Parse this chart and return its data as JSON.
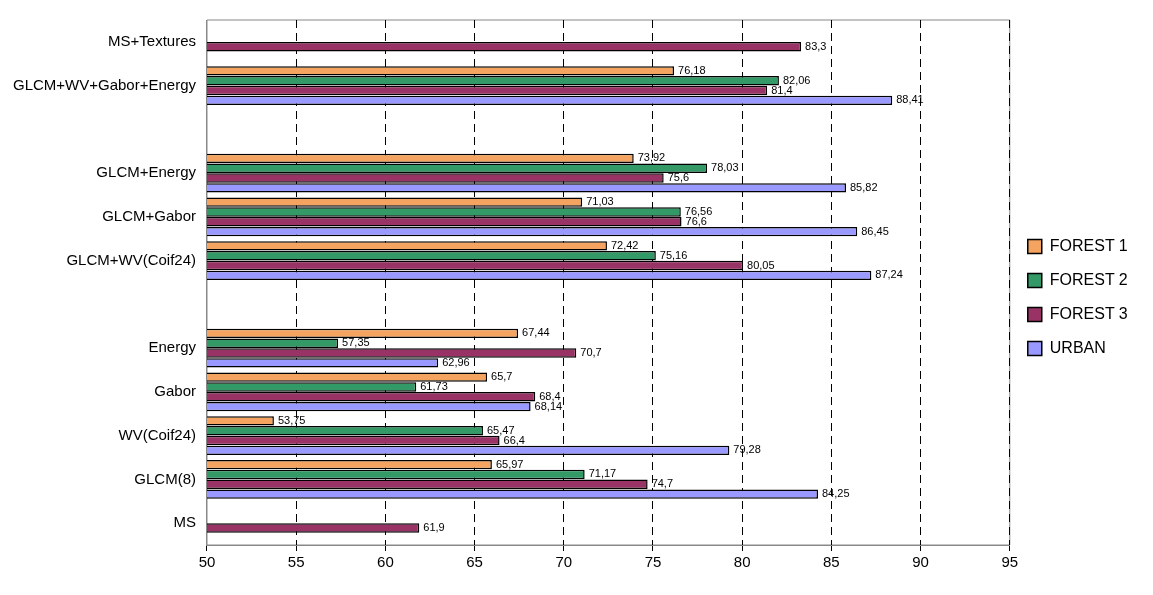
{
  "chart_data": {
    "type": "bar",
    "orientation": "horizontal",
    "categories": [
      "MS+Textures",
      "GLCM+WV+Gabor+Energy",
      null,
      "GLCM+Energy",
      "GLCM+Gabor",
      "GLCM+WV(Coif24)",
      null,
      "Energy",
      "Gabor",
      "WV(Coif24)",
      "GLCM(8)",
      "MS"
    ],
    "series": [
      {
        "name": "FOREST 1",
        "color": "#f4a460",
        "values": [
          null,
          76.18,
          null,
          73.92,
          71.03,
          72.42,
          null,
          67.44,
          65.7,
          53.75,
          65.97,
          null
        ],
        "value_labels": [
          null,
          "76,18",
          null,
          "73,92",
          "71,03",
          "72,42",
          null,
          "67,44",
          "65,7",
          "53,75",
          "65,97",
          null
        ]
      },
      {
        "name": "FOREST 2",
        "color": "#339966",
        "values": [
          null,
          82.06,
          null,
          78.03,
          76.56,
          75.16,
          null,
          57.35,
          61.73,
          65.47,
          71.17,
          null
        ],
        "value_labels": [
          null,
          "82,06",
          null,
          "78,03",
          "76,56",
          "75,16",
          null,
          "57,35",
          "61,73",
          "65,47",
          "71,17",
          null
        ]
      },
      {
        "name": "FOREST 3",
        "color": "#993366",
        "values": [
          83.3,
          81.4,
          null,
          75.6,
          76.6,
          80.05,
          null,
          70.7,
          68.4,
          66.4,
          74.7,
          61.9
        ],
        "value_labels": [
          "83,3",
          "81,4",
          null,
          "75,6",
          "76,6",
          "80,05",
          null,
          "70,7",
          "68,4",
          "66,4",
          "74,7",
          "61,9"
        ]
      },
      {
        "name": "URBAN",
        "color": "#9999ff",
        "values": [
          null,
          88.41,
          null,
          85.82,
          86.45,
          87.24,
          null,
          62.96,
          68.14,
          79.28,
          84.25,
          null
        ],
        "value_labels": [
          null,
          "88,41",
          null,
          "85,82",
          "86,45",
          "87,24",
          null,
          "62,96",
          "68,14",
          "79,28",
          "84,25",
          null
        ]
      }
    ],
    "xlim": [
      50,
      95
    ],
    "xticks": [
      50,
      55,
      60,
      65,
      70,
      75,
      80,
      85,
      90,
      95
    ],
    "grid": "x",
    "legend": "right"
  }
}
